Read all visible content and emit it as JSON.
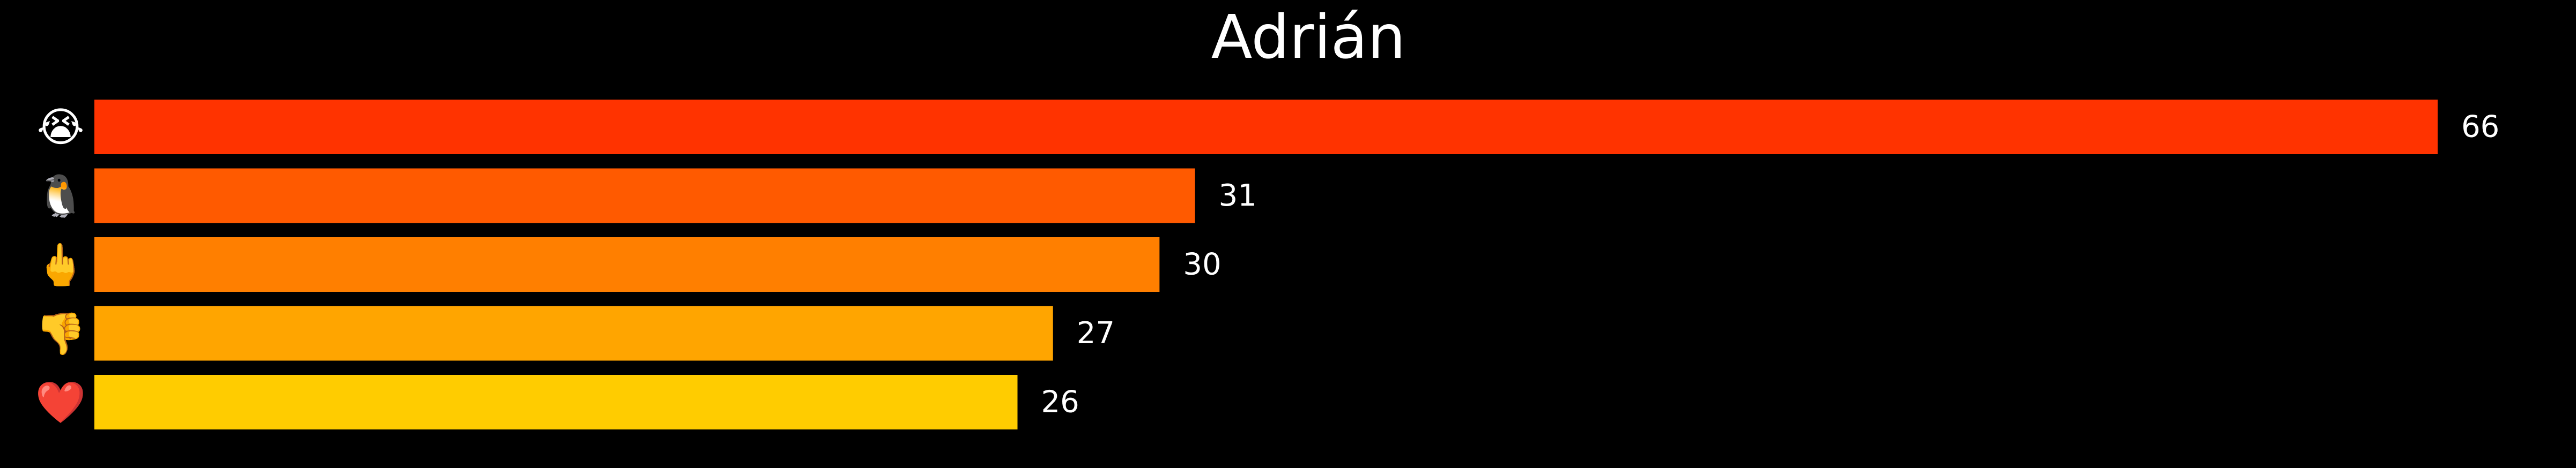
{
  "chart_data": {
    "type": "bar",
    "orientation": "horizontal",
    "title": "Adrián",
    "categories": [
      "😭",
      "🐧",
      "🖕",
      "👎",
      "❤️"
    ],
    "category_icon_names": [
      "loudly-crying-face-icon",
      "penguin-icon",
      "middle-finger-icon",
      "thumbs-down-icon",
      "red-heart-icon"
    ],
    "values": [
      66,
      31,
      30,
      27,
      26
    ],
    "bar_colors": [
      "#ff3300",
      "#ff5a00",
      "#ff7f00",
      "#ffa500",
      "#ffcc00"
    ],
    "xlim": [
      0,
      70
    ],
    "grid": false,
    "legend": "none",
    "xlabel": "",
    "ylabel": ""
  },
  "colors": {
    "background": "#000000",
    "text": "#ffffff"
  }
}
